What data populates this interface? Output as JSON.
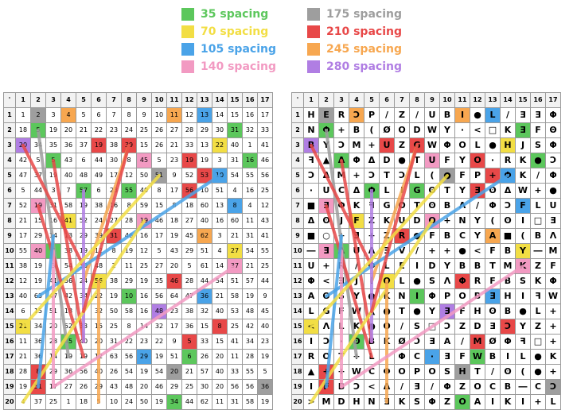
{
  "legend": [
    {
      "label": "35 spacing",
      "color": "#5cc75c"
    },
    {
      "label": "70 spacing",
      "color": "#f2de44"
    },
    {
      "label": "105 spacing",
      "color": "#4aa3e8"
    },
    {
      "label": "140 spacing",
      "color": "#f29ac2"
    },
    {
      "label": "175 spacing",
      "color": "#9e9e9e"
    },
    {
      "label": "210 spacing",
      "color": "#e84848"
    },
    {
      "label": "245 spacing",
      "color": "#f7a750"
    },
    {
      "label": "280 spacing",
      "color": "#b07ee3"
    }
  ],
  "grid": {
    "corner": "'",
    "columns": [
      "1",
      "2",
      "3",
      "4",
      "5",
      "6",
      "7",
      "8",
      "9",
      "10",
      "11",
      "12",
      "13",
      "14",
      "15",
      "16",
      "17"
    ],
    "rows": [
      "1",
      "2",
      "3",
      "4",
      "5",
      "6",
      "7",
      "8",
      "9",
      "10",
      "11",
      "12",
      "13",
      "14",
      "15",
      "16",
      "17",
      "18",
      "19",
      "20"
    ]
  },
  "left_grid": [
    [
      "1",
      "2",
      "3",
      "4",
      "5",
      "6",
      "7",
      "8",
      "9",
      "10",
      "11",
      "12",
      "13",
      "14",
      "15",
      "16",
      "17"
    ],
    [
      "18",
      "5",
      "19",
      "20",
      "21",
      "22",
      "23",
      "24",
      "25",
      "26",
      "27",
      "28",
      "29",
      "30",
      "31",
      "32",
      "33"
    ],
    [
      "20",
      "34",
      "35",
      "36",
      "37",
      "19",
      "38",
      "39",
      "15",
      "26",
      "21",
      "33",
      "13",
      "22",
      "40",
      "1",
      "41"
    ],
    [
      "42",
      "5",
      "5",
      "43",
      "6",
      "44",
      "30",
      "8",
      "45",
      "5",
      "23",
      "19",
      "19",
      "3",
      "31",
      "16",
      "46"
    ],
    [
      "47",
      "37",
      "19",
      "40",
      "48",
      "49",
      "17",
      "12",
      "50",
      "51",
      "9",
      "52",
      "53",
      "10",
      "54",
      "55",
      "56"
    ],
    [
      "5",
      "44",
      "3",
      "7",
      "57",
      "6",
      "23",
      "55",
      "40",
      "8",
      "17",
      "56",
      "10",
      "51",
      "4",
      "16",
      "25"
    ],
    [
      "52",
      "19",
      "31",
      "58",
      "19",
      "38",
      "16",
      "8",
      "59",
      "15",
      "8",
      "18",
      "60",
      "13",
      "8",
      "4",
      "12"
    ],
    [
      "21",
      "15",
      "16",
      "41",
      "52",
      "24",
      "27",
      "28",
      "19",
      "46",
      "18",
      "27",
      "40",
      "16",
      "60",
      "11",
      "43"
    ],
    [
      "17",
      "29",
      "14",
      "13",
      "29",
      "39",
      "31",
      "46",
      "16",
      "17",
      "19",
      "45",
      "62",
      "3",
      "21",
      "31",
      "41"
    ],
    [
      "55",
      "40",
      "6",
      "38",
      "19",
      "12",
      "8",
      "19",
      "12",
      "5",
      "43",
      "29",
      "51",
      "4",
      "27",
      "54",
      "55"
    ],
    [
      "38",
      "19",
      "3",
      "54",
      "50",
      "48",
      "2",
      "11",
      "25",
      "27",
      "20",
      "5",
      "61",
      "14",
      "37",
      "21",
      "25"
    ],
    [
      "12",
      "19",
      "41",
      "36",
      "24",
      "56",
      "38",
      "29",
      "19",
      "35",
      "46",
      "28",
      "44",
      "54",
      "51",
      "57",
      "44"
    ],
    [
      "40",
      "63",
      "47",
      "42",
      "34",
      "22",
      "19",
      "10",
      "16",
      "56",
      "64",
      "47",
      "36",
      "21",
      "58",
      "19",
      "9"
    ],
    [
      "6",
      "15",
      "51",
      "18",
      "7",
      "32",
      "50",
      "58",
      "16",
      "48",
      "23",
      "38",
      "32",
      "40",
      "53",
      "48",
      "45"
    ],
    [
      "21",
      "34",
      "20",
      "52",
      "33",
      "15",
      "25",
      "8",
      "14",
      "32",
      "17",
      "36",
      "15",
      "8",
      "25",
      "42",
      "40"
    ],
    [
      "11",
      "36",
      "28",
      "45",
      "40",
      "20",
      "31",
      "22",
      "23",
      "22",
      "9",
      "5",
      "33",
      "15",
      "41",
      "34",
      "23"
    ],
    [
      "21",
      "36",
      "14",
      "19",
      "19",
      "12",
      "63",
      "56",
      "29",
      "19",
      "51",
      "6",
      "26",
      "20",
      "11",
      "28",
      "19"
    ],
    [
      "28",
      "8",
      "29",
      "36",
      "56",
      "40",
      "26",
      "54",
      "19",
      "54",
      "20",
      "21",
      "57",
      "40",
      "33",
      "55",
      "5"
    ],
    [
      "19",
      "51",
      "17",
      "27",
      "26",
      "29",
      "43",
      "48",
      "20",
      "46",
      "29",
      "25",
      "30",
      "20",
      "56",
      "56",
      "36"
    ],
    [
      "4",
      "37",
      "25",
      "1",
      "18",
      "5",
      "10",
      "24",
      "50",
      "19",
      "34",
      "44",
      "62",
      "11",
      "31",
      "58",
      "19"
    ]
  ],
  "right_grid": [
    [
      "H",
      "E",
      "R",
      "Ɔ",
      "P",
      "/",
      "Z",
      "/",
      "U",
      "B",
      "I",
      "●",
      "L",
      "/",
      "Ǝ",
      "Ǝ",
      "Φ"
    ],
    [
      "N",
      "Φ",
      "+",
      "B",
      "(",
      "Ø",
      "O",
      "D",
      "W",
      "Y",
      "·",
      "<",
      "□",
      "K",
      "Ǝ",
      "F",
      "Θ"
    ],
    [
      "B",
      "Y",
      "Ɔ",
      "M",
      "+",
      "U",
      "Z",
      "G",
      "W",
      "Φ",
      "O",
      "L",
      "●",
      "H",
      "J",
      "S",
      "Φ"
    ],
    [
      "ꟻ",
      "▲",
      "Δ",
      "Φ",
      "Δ",
      "D",
      "●",
      "T",
      "U",
      "F",
      "Y",
      "O",
      "·",
      "R",
      "K",
      "●",
      "Ɔ"
    ],
    [
      "Ɔ",
      "Δ",
      "M",
      "+",
      "Ɔ",
      "T",
      "Ɔ",
      "L",
      "(",
      "●",
      "F",
      "P",
      "+",
      "Φ",
      "K",
      "/",
      "Φ"
    ],
    [
      "·",
      "U",
      "C",
      "Δ",
      "Φ",
      "L",
      "I",
      "G",
      "ʘ",
      "T",
      "Y",
      "Ǝ",
      "ʘ",
      "Δ",
      "W",
      "+",
      "●"
    ],
    [
      "■",
      "Ǝ",
      "Φ",
      "K",
      "ꟻ",
      "G",
      "O",
      "T",
      "ʘ",
      "B",
      "Ʌ",
      "/",
      "Φ",
      "Ɔ",
      "F",
      "L",
      "U"
    ],
    [
      "Δ",
      "ʘ",
      "J",
      "F",
      "Z",
      "K",
      "U",
      "D",
      "O",
      "+",
      "N",
      "Y",
      "(",
      "ʘ",
      "I",
      "□",
      "Ǝ"
    ],
    [
      "■",
      "○",
      "+",
      "Ǝ",
      "+",
      "Z",
      "R",
      "●",
      "F",
      "B",
      "C",
      "Y",
      "A",
      "■",
      "(",
      "B",
      "Ʌ"
    ],
    [
      "―",
      "Ǝ",
      "A",
      "U",
      "Ʌ",
      "Ǝ",
      "V",
      "/",
      "+",
      "+",
      "●",
      "<",
      "F",
      "B",
      "Y",
      "―",
      "M"
    ],
    [
      "U",
      "+",
      "R",
      "/",
      "Φ",
      "L",
      "E",
      "I",
      "D",
      "Y",
      "B",
      "B",
      "T",
      "M",
      "K",
      "Z",
      "F"
    ],
    [
      "Φ",
      "<",
      "Ǝ",
      "J",
      "I",
      "O",
      "L",
      "●",
      "S",
      "Ʌ",
      "Φ",
      "R",
      "F",
      "B",
      "S",
      "K",
      "Φ"
    ],
    [
      "A",
      "ʘ",
      "S",
      "Y",
      "●",
      "K",
      "N",
      "I",
      "Φ",
      "P",
      "O",
      "B",
      "Ǝ",
      "H",
      "I",
      "ꟻ",
      "W"
    ],
    [
      "L",
      "G",
      "F",
      "W",
      "▲",
      "●",
      "T",
      "●",
      "Y",
      "Ǝ",
      "F",
      "H",
      "ʘ",
      "B",
      "●",
      "L",
      "+"
    ],
    [
      "<",
      "Ʌ",
      "L",
      "K",
      "●",
      "O",
      "/",
      "S",
      "□",
      "Ɔ",
      "Z",
      "D",
      "Ǝ",
      "Ɔ",
      "Y",
      "Z",
      "+"
    ],
    [
      "I",
      "Ɔ",
      "·",
      "ʘ",
      "B",
      "K",
      "Ø",
      "Ɔ",
      "Ǝ",
      "A",
      "/",
      "M",
      "Ø",
      "Φ",
      "ꟻ",
      "□",
      "+"
    ],
    [
      "R",
      "O",
      "T",
      "+",
      "L",
      "·",
      "Φ",
      "C",
      "·",
      "Ǝ",
      "F",
      "W",
      "B",
      "I",
      "L",
      "●",
      "K"
    ],
    [
      "▲",
      "+",
      "+",
      "W",
      "C",
      "Φ",
      "O",
      "P",
      "O",
      "S",
      "H",
      "T",
      "/",
      "ʘ",
      "(",
      "●",
      "+"
    ],
    [
      "I",
      "F",
      "B",
      "Ɔ",
      "<",
      "Δ",
      "/",
      "Ǝ",
      "/",
      "Φ",
      "Z",
      "O",
      "C",
      "B",
      "―",
      "C",
      "Ɔ"
    ],
    [
      ">",
      "M",
      "D",
      "H",
      "N",
      "Ǝ",
      "K",
      "S",
      "Φ",
      "Z",
      "O",
      "A",
      "I",
      "K",
      "I",
      "+",
      "L"
    ]
  ]
}
